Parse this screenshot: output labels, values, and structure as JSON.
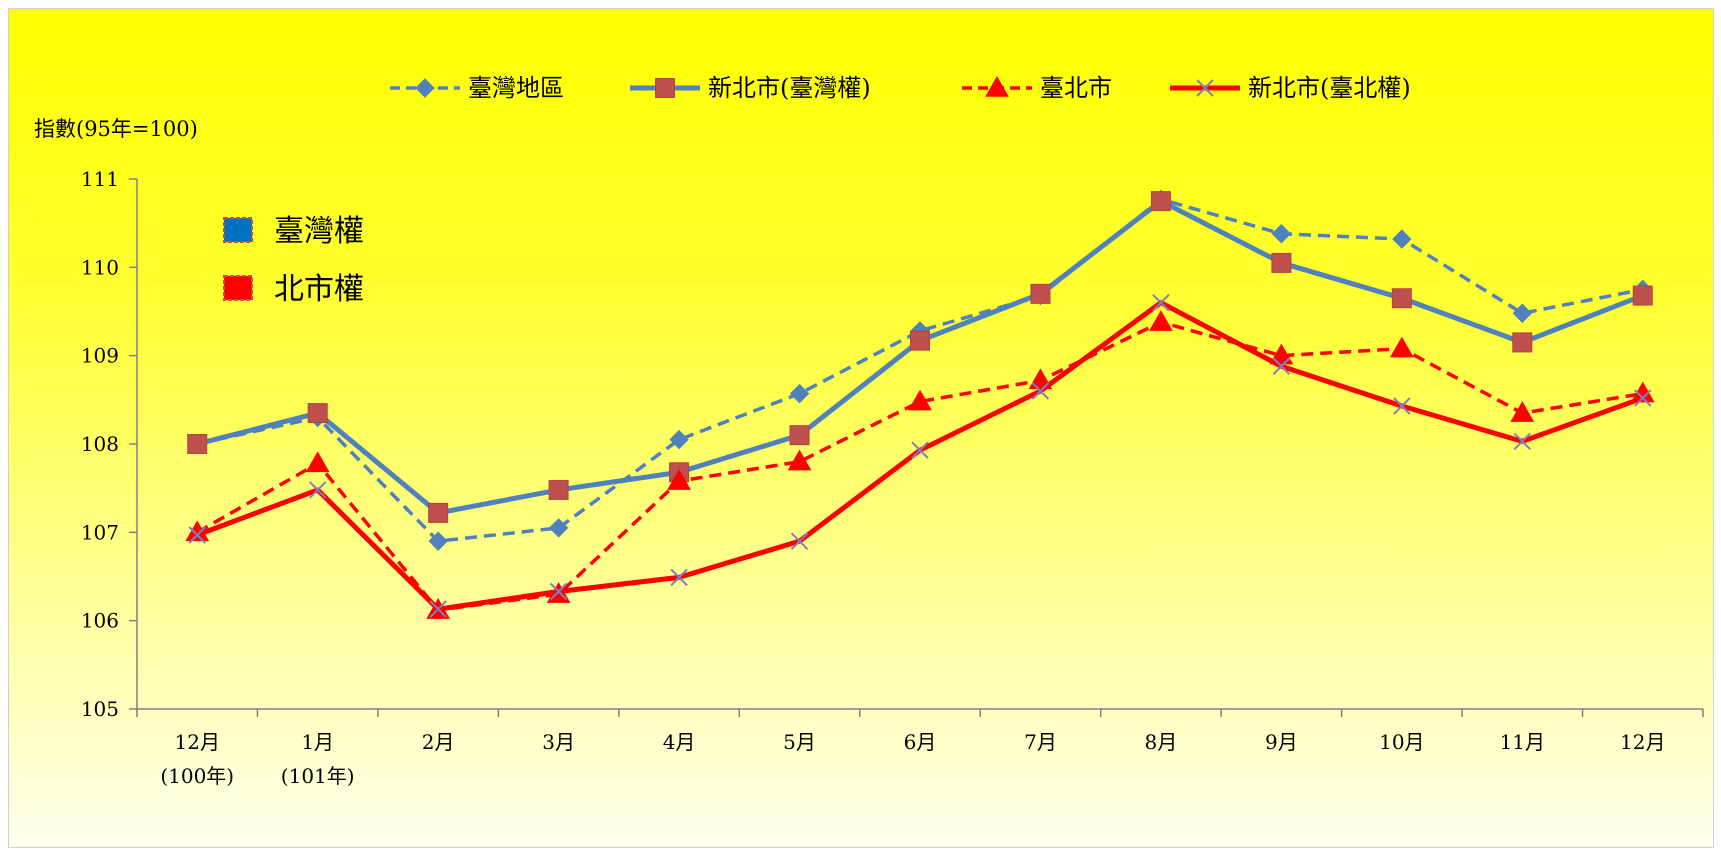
{
  "chart_data": {
    "type": "line",
    "title": "",
    "ylabel": "指數(95年=100)",
    "xlabel": "",
    "ylim": [
      105,
      111
    ],
    "yticks": [
      105,
      106,
      107,
      108,
      109,
      110,
      111
    ],
    "categories": [
      {
        "line1": "12月",
        "line2": "(100年)"
      },
      {
        "line1": "1月",
        "line2": "(101年)"
      },
      {
        "line1": "2月",
        "line2": ""
      },
      {
        "line1": "3月",
        "line2": ""
      },
      {
        "line1": "4月",
        "line2": ""
      },
      {
        "line1": "5月",
        "line2": ""
      },
      {
        "line1": "6月",
        "line2": ""
      },
      {
        "line1": "7月",
        "line2": ""
      },
      {
        "line1": "8月",
        "line2": ""
      },
      {
        "line1": "9月",
        "line2": ""
      },
      {
        "line1": "10月",
        "line2": ""
      },
      {
        "line1": "11月",
        "line2": ""
      },
      {
        "line1": "12月",
        "line2": ""
      }
    ],
    "series": [
      {
        "name": "臺灣地區",
        "color": "#4f81bd",
        "dash": "dashed",
        "marker": "diamond",
        "values": [
          108.0,
          108.3,
          106.9,
          107.05,
          108.05,
          108.57,
          109.28,
          109.68,
          110.77,
          110.38,
          110.32,
          109.48,
          109.75
        ]
      },
      {
        "name": "新北市(臺灣權)",
        "color": "#4f81bd",
        "dash": "solid",
        "marker": "square",
        "values": [
          108.0,
          108.35,
          107.22,
          107.48,
          107.68,
          108.1,
          109.17,
          109.7,
          110.75,
          110.05,
          109.65,
          109.15,
          109.68
        ]
      },
      {
        "name": "臺北市",
        "color": "#ff0000",
        "dash": "dashed",
        "marker": "triangle",
        "values": [
          107.0,
          107.78,
          106.12,
          106.3,
          107.58,
          107.8,
          108.48,
          108.72,
          109.38,
          109.0,
          109.08,
          108.35,
          108.57
        ]
      },
      {
        "name": "新北市(臺北權)",
        "color": "#ff0000",
        "dash": "solid",
        "marker": "x",
        "values": [
          106.97,
          107.48,
          106.13,
          106.33,
          106.49,
          106.9,
          107.93,
          108.6,
          109.6,
          108.88,
          108.43,
          108.03,
          108.52
        ]
      }
    ],
    "legend_position": "top",
    "grid": false
  },
  "inset_legend": [
    {
      "label": "臺灣權",
      "color": "#0070c0"
    },
    {
      "label": "北市權",
      "color": "#ff0000"
    }
  ]
}
